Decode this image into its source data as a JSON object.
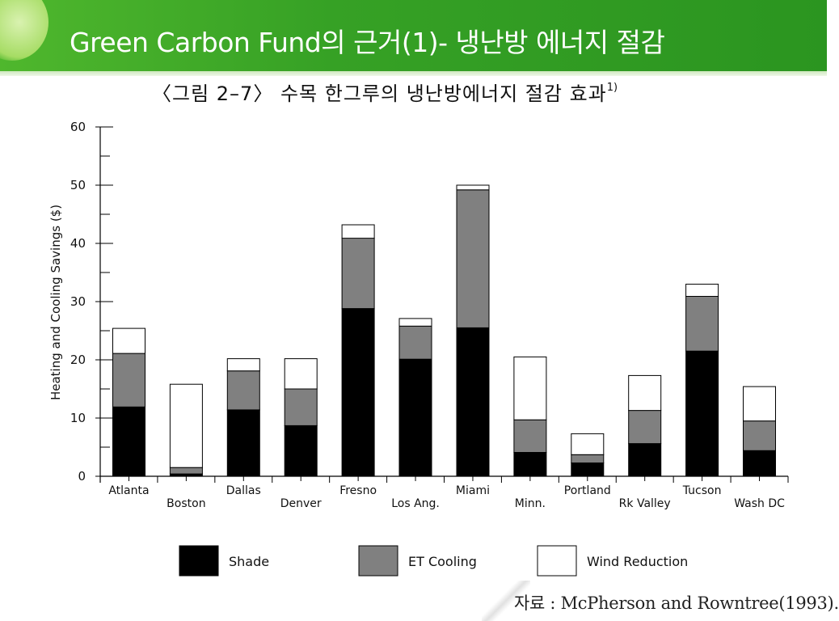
{
  "slide": {
    "title": "Green Carbon Fund의 근거(1)- 냉난방 에너지 절감",
    "figure_caption": "〈그림 2–7〉 수목 한그루의 냉난방에너지 절감 효과",
    "figure_caption_note": "1)",
    "source": "자료 : McPherson and Rowntree(1993)."
  },
  "chart_data": {
    "type": "bar",
    "stacked": true,
    "ylabel": "Heating and Cooling Savings ($)",
    "xlabel": "",
    "ylim": [
      0,
      60
    ],
    "yticks": [
      0,
      10,
      20,
      30,
      40,
      50,
      60
    ],
    "categories": [
      "Atlanta",
      "Boston",
      "Dallas",
      "Denver",
      "Fresno",
      "Los Ang.",
      "Miami",
      "Minn.",
      "Portland",
      "Rk Valley",
      "Tucson",
      "Wash DC"
    ],
    "series": [
      {
        "name": "Shade",
        "color": "#000000",
        "values": [
          11.9,
          0.4,
          11.4,
          8.7,
          28.8,
          20.1,
          25.5,
          4.1,
          2.3,
          5.6,
          21.5,
          4.4
        ]
      },
      {
        "name": "ET Cooling",
        "color": "#808080",
        "values": [
          9.2,
          1.1,
          6.7,
          6.3,
          12.1,
          5.7,
          23.7,
          5.6,
          1.4,
          5.7,
          9.4,
          5.1
        ]
      },
      {
        "name": "Wind Reduction",
        "color": "#ffffff",
        "values": [
          4.3,
          14.3,
          2.1,
          5.2,
          2.3,
          1.3,
          0.8,
          10.8,
          3.6,
          6.0,
          2.1,
          5.9
        ]
      }
    ],
    "grid": false,
    "legend_position": "bottom"
  }
}
